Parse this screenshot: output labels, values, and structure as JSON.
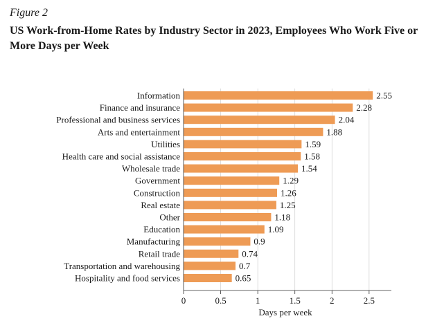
{
  "figure_label": "Figure 2",
  "chart_data": {
    "type": "bar",
    "orientation": "horizontal",
    "title": "US Work-from-Home Rates by Industry Sector in 2023, Employees Who Work Five or More Days per Week",
    "xlabel": "Days per week",
    "ylabel": "",
    "xlim": [
      0,
      2.8
    ],
    "xticks": [
      0,
      0.5,
      1,
      1.5,
      2,
      2.5
    ],
    "grid": true,
    "bar_color": "#EE9B55",
    "categories": [
      "Information",
      "Finance and insurance",
      "Professional and business services",
      "Arts and entertainment",
      "Utilities",
      "Health care and social assistance",
      "Wholesale trade",
      "Government",
      "Construction",
      "Real estate",
      "Other",
      "Education",
      "Manufacturing",
      "Retail trade",
      "Transportation and warehousing",
      "Hospitality and food services"
    ],
    "values": [
      2.55,
      2.28,
      2.04,
      1.88,
      1.59,
      1.58,
      1.54,
      1.29,
      1.26,
      1.25,
      1.18,
      1.09,
      0.9,
      0.74,
      0.7,
      0.65
    ],
    "value_labels": [
      "2.55",
      "2.28",
      "2.04",
      "1.88",
      "1.59",
      "1.58",
      "1.54",
      "1.29",
      "1.26",
      "1.25",
      "1.18",
      "1.09",
      "0.9",
      "0.74",
      "0.7",
      "0.65"
    ]
  }
}
